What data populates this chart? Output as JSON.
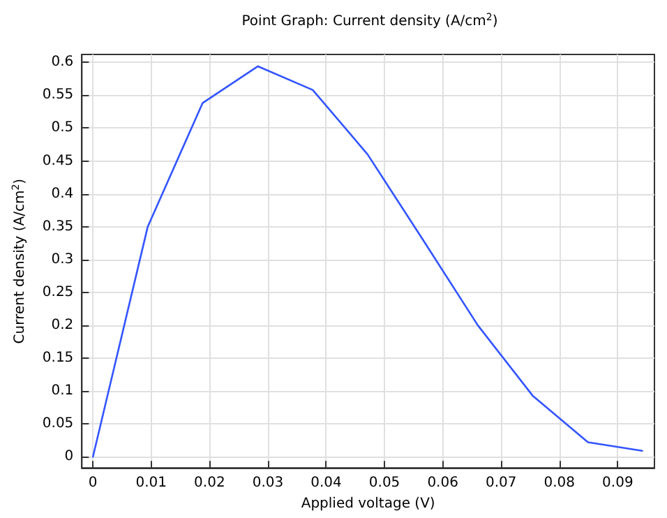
{
  "chart_data": {
    "type": "line",
    "title": "Point Graph: Current density (A/cm$^{2}$)",
    "xlabel": "Applied voltage (V)",
    "ylabel": "Current density (A/cm$^{2}$)",
    "x": [
      0,
      0.0094,
      0.0188,
      0.0283,
      0.0377,
      0.0471,
      0.0566,
      0.066,
      0.0754,
      0.0849,
      0.0942
    ],
    "series": [
      {
        "color": "#3355ff",
        "values": [
          0,
          0.35,
          0.538,
          0.594,
          0.558,
          0.46,
          0.33,
          0.2,
          0.093,
          0.022,
          0.009
        ]
      }
    ],
    "xlim": [
      -0.0019,
      0.0963
    ],
    "xticks": [
      0,
      0.01,
      0.02,
      0.03,
      0.04,
      0.05,
      0.06,
      0.07,
      0.08,
      0.09
    ],
    "ylim": [
      -0.017,
      0.612
    ],
    "yticks": [
      0,
      0.05,
      0.1,
      0.15,
      0.2,
      0.25,
      0.3,
      0.35,
      0.4,
      0.45,
      0.5,
      0.55,
      0.6
    ],
    "grid": true,
    "marker": "none",
    "line_style": "solid"
  }
}
